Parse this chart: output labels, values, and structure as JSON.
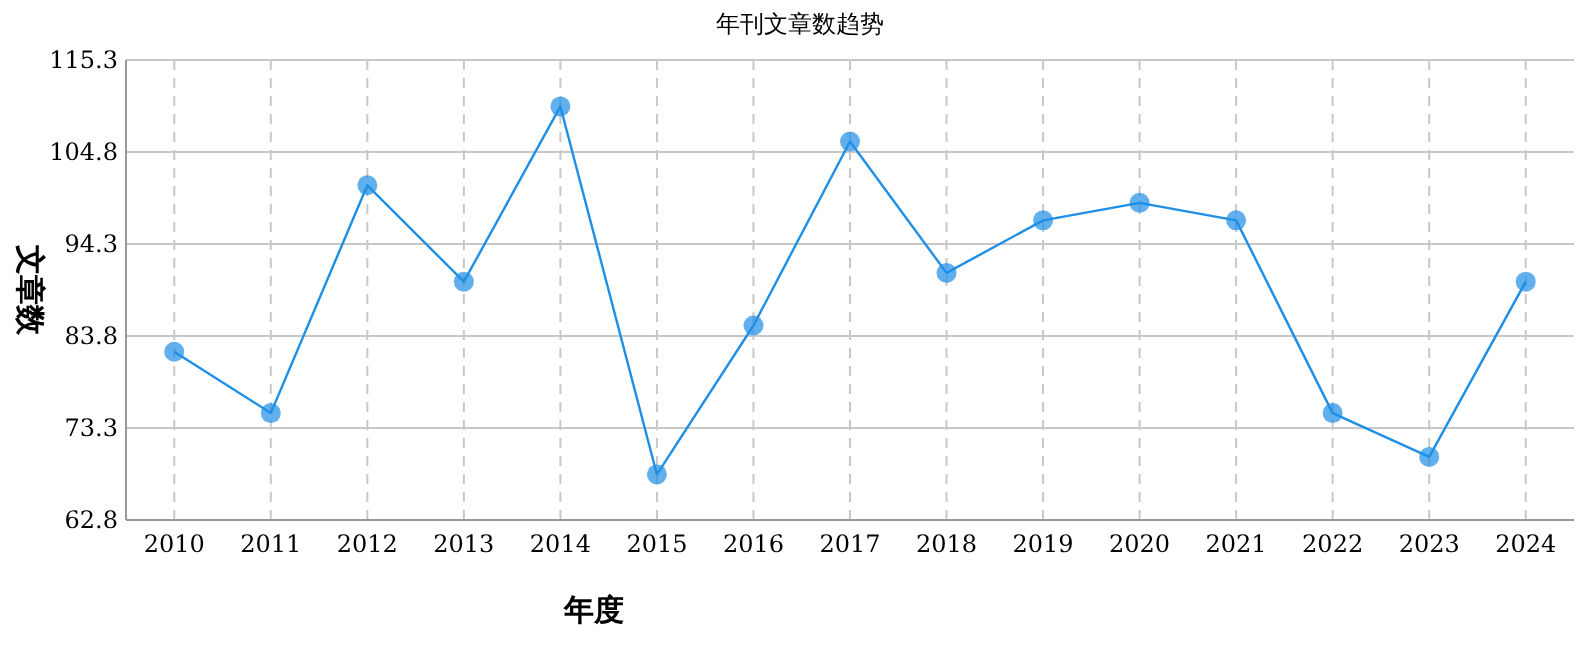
{
  "chart_data": {
    "type": "line",
    "title": "年刊文章数趋势",
    "xlabel": "年度",
    "ylabel": "文章数",
    "categories": [
      "2010",
      "2011",
      "2012",
      "2013",
      "2014",
      "2015",
      "2016",
      "2017",
      "2018",
      "2019",
      "2020",
      "2021",
      "2022",
      "2023",
      "2024"
    ],
    "series": [
      {
        "color": "#1e8fe6",
        "values": [
          82,
          75,
          101,
          90,
          110,
          68,
          85,
          106,
          91,
          97,
          99,
          97,
          75,
          70,
          90
        ]
      }
    ],
    "ylim": [
      62.8,
      115.3
    ],
    "yticks": [
      62.8,
      73.3,
      83.8,
      94.3,
      104.8,
      115.3
    ],
    "grid": true,
    "marker": "circle",
    "line_style": "solid"
  }
}
